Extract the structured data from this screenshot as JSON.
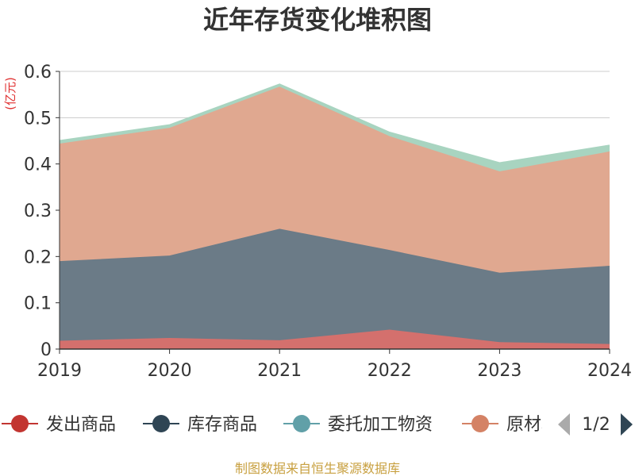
{
  "chart_data": {
    "type": "area",
    "title": "近年存货变化堆积图",
    "unit_label": "(亿元)",
    "x": [
      "2019",
      "2020",
      "2021",
      "2022",
      "2023",
      "2024"
    ],
    "ylim": [
      0,
      0.6
    ],
    "yticks": [
      "0",
      "0.1",
      "0.2",
      "0.3",
      "0.4",
      "0.5",
      "0.6"
    ],
    "stacked": true,
    "grid": true,
    "series": [
      {
        "name": "发出商品",
        "color": "#d4706d",
        "values": [
          0.018,
          0.024,
          0.019,
          0.042,
          0.015,
          0.011
        ]
      },
      {
        "name": "库存商品",
        "color": "#6b7b87",
        "values": [
          0.172,
          0.178,
          0.241,
          0.172,
          0.15,
          0.169
        ]
      },
      {
        "name": "原材料",
        "color": "#e0a890",
        "values": [
          0.254,
          0.276,
          0.307,
          0.246,
          0.219,
          0.247
        ]
      },
      {
        "name": "委托加工物资",
        "color": "#a8d4c0",
        "values": [
          0.006,
          0.006,
          0.005,
          0.008,
          0.018,
          0.013
        ]
      }
    ],
    "legend": {
      "position": "bottom",
      "page": "1/2",
      "items": [
        {
          "name": "发出商品",
          "color": "#c23531"
        },
        {
          "name": "库存商品",
          "color": "#2f4554"
        },
        {
          "name": "委托加工物资",
          "color": "#61a0a8"
        },
        {
          "name": "原材料",
          "color": "#d48265"
        }
      ]
    }
  },
  "source": "制图数据来自恒生聚源数据库"
}
